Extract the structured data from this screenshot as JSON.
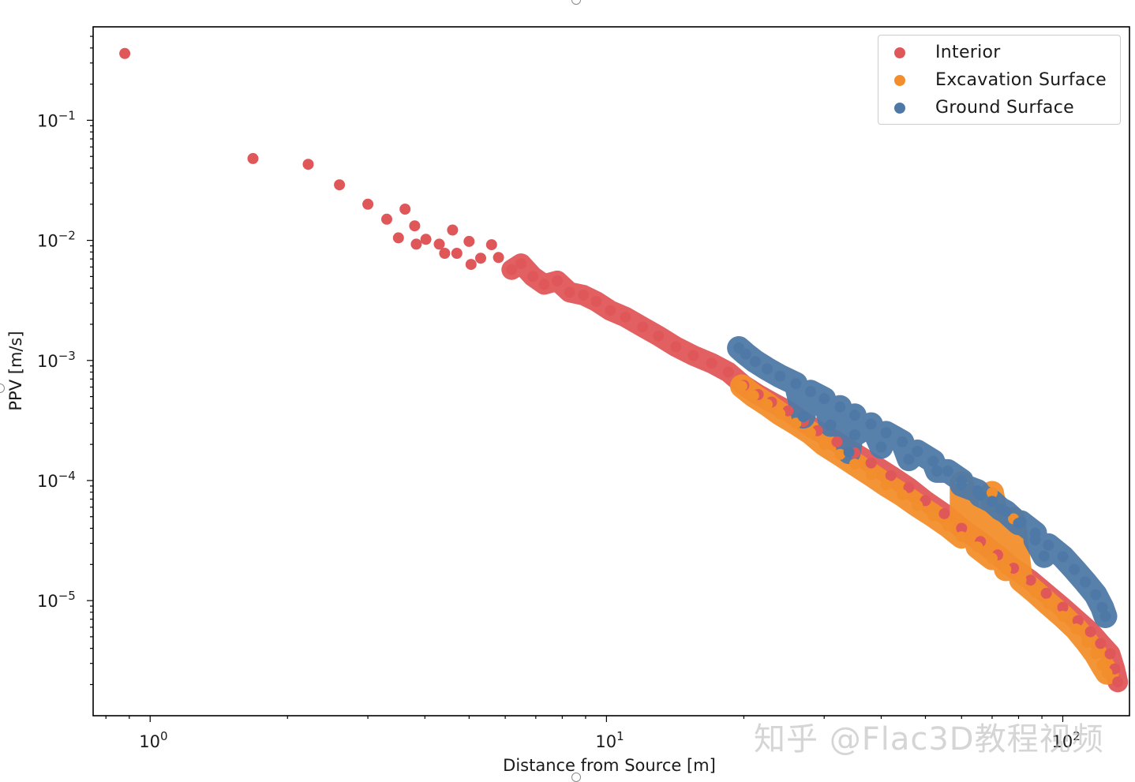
{
  "watermark": "知乎 @Flac3D教程视频",
  "colors": {
    "interior": "#e05759",
    "excavation": "#f28e2b",
    "ground": "#4e79a7"
  },
  "chart_data": {
    "type": "scatter",
    "title": "",
    "xlabel": "Distance from Source [m]",
    "ylabel": "PPV [m/s]",
    "xscale": "log",
    "yscale": "log",
    "xlim": [
      0.75,
      140
    ],
    "ylim": [
      1.1e-06,
      0.6
    ],
    "xticks": [
      {
        "value": 1,
        "base": "10",
        "exp": "0"
      },
      {
        "value": 10,
        "base": "10",
        "exp": "1"
      },
      {
        "value": 100,
        "base": "10",
        "exp": "2"
      }
    ],
    "yticks": [
      {
        "value": 0.1,
        "base": "10",
        "exp": "−1"
      },
      {
        "value": 0.01,
        "base": "10",
        "exp": "−2"
      },
      {
        "value": 0.001,
        "base": "10",
        "exp": "−3"
      },
      {
        "value": 0.0001,
        "base": "10",
        "exp": "−4"
      },
      {
        "value": 1e-05,
        "base": "10",
        "exp": "−5"
      }
    ],
    "legend_position": "top-right",
    "grid": false,
    "series": [
      {
        "name": "Interior",
        "color": "#e05759",
        "points": [
          [
            0.88,
            0.36
          ],
          [
            1.68,
            0.048
          ],
          [
            2.22,
            0.043
          ],
          [
            2.6,
            0.029
          ],
          [
            3.0,
            0.02
          ],
          [
            3.3,
            0.015
          ],
          [
            3.5,
            0.0105
          ],
          [
            3.62,
            0.0182
          ],
          [
            3.8,
            0.0132
          ],
          [
            3.83,
            0.0093
          ],
          [
            4.02,
            0.0102
          ],
          [
            4.3,
            0.0093
          ],
          [
            4.42,
            0.0078
          ],
          [
            4.6,
            0.0122
          ],
          [
            4.7,
            0.0078
          ],
          [
            5.0,
            0.0098
          ],
          [
            5.05,
            0.0063
          ],
          [
            5.3,
            0.0071
          ],
          [
            5.6,
            0.0092
          ],
          [
            5.8,
            0.0072
          ],
          [
            6.2,
            0.0057
          ],
          [
            6.5,
            0.0064
          ],
          [
            6.9,
            0.005
          ],
          [
            7.3,
            0.0043
          ],
          [
            7.8,
            0.0046
          ],
          [
            8.3,
            0.0037
          ],
          [
            8.9,
            0.0035
          ],
          [
            9.5,
            0.0031
          ],
          [
            10.2,
            0.0026
          ],
          [
            11.0,
            0.0023
          ],
          [
            12.0,
            0.0019
          ],
          [
            13.0,
            0.0016
          ],
          [
            14.2,
            0.0013
          ],
          [
            15.5,
            0.0011
          ],
          [
            17.0,
            0.00095
          ],
          [
            18.5,
            0.0008
          ],
          [
            20.0,
            0.00062
          ],
          [
            21.5,
            0.00052
          ],
          [
            23.0,
            0.00045
          ],
          [
            25.0,
            0.00038
          ],
          [
            27.0,
            0.00031
          ],
          [
            29.0,
            0.00026
          ],
          [
            32.0,
            0.00021
          ],
          [
            35.0,
            0.00017
          ],
          [
            38.0,
            0.00014
          ],
          [
            42.0,
            0.00011
          ],
          [
            46.0,
            8.75e-05
          ],
          [
            50.0,
            6.8e-05
          ],
          [
            55.0,
            5.3e-05
          ],
          [
            60.0,
            4e-05
          ],
          [
            66.0,
            3.1e-05
          ],
          [
            72.0,
            2.4e-05
          ],
          [
            78.0,
            1.86e-05
          ],
          [
            85.0,
            1.48e-05
          ],
          [
            92.0,
            1.15e-05
          ],
          [
            100.0,
            8.8e-06
          ],
          [
            108.0,
            6.8e-06
          ],
          [
            115.0,
            5.5e-06
          ],
          [
            121.0,
            4.4e-06
          ],
          [
            127.0,
            3.6e-06
          ],
          [
            130.0,
            2.7e-06
          ],
          [
            132.0,
            2.1e-06
          ]
        ]
      },
      {
        "name": "Excavation Surface",
        "color": "#f28e2b",
        "points": [
          [
            19.8,
            0.00061
          ],
          [
            21.0,
            0.00051
          ],
          [
            22.5,
            0.00043
          ],
          [
            24.0,
            0.00036
          ],
          [
            26.0,
            0.0003
          ],
          [
            28.0,
            0.00025
          ],
          [
            30.0,
            0.0002
          ],
          [
            32.5,
            0.000165
          ],
          [
            35.0,
            0.000137
          ],
          [
            38.0,
            0.000112
          ],
          [
            41.0,
            9.2e-05
          ],
          [
            44.5,
            7.6e-05
          ],
          [
            48.0,
            6.2e-05
          ],
          [
            52.0,
            5.1e-05
          ],
          [
            56.0,
            4.2e-05
          ],
          [
            60.0,
            3.4e-05
          ],
          [
            65.0,
            2.8e-05
          ],
          [
            70.0,
            2.25e-05
          ],
          [
            75.0,
            1.82e-05
          ],
          [
            81.0,
            1.48e-05
          ],
          [
            87.0,
            1.18e-05
          ],
          [
            93.0,
            9.4e-06
          ],
          [
            100.0,
            7.4e-06
          ],
          [
            107.0,
            5.8e-06
          ],
          [
            113.0,
            4.5e-06
          ],
          [
            118.0,
            3.6e-06
          ],
          [
            122.0,
            2.9e-06
          ],
          [
            125.0,
            2.5e-06
          ],
          [
            60.0,
            9.5e-05
          ],
          [
            70.0,
            7.9e-05
          ],
          [
            78.0,
            4.8e-05
          ]
        ]
      },
      {
        "name": "Ground Surface",
        "color": "#4e79a7",
        "points": [
          [
            19.5,
            0.00127
          ],
          [
            20.2,
            0.00113
          ],
          [
            21.2,
            0.00098
          ],
          [
            22.5,
            0.00085
          ],
          [
            24.0,
            0.00074
          ],
          [
            26.0,
            0.00064
          ],
          [
            28.0,
            0.00055
          ],
          [
            30.0,
            0.00048
          ],
          [
            32.5,
            0.00041
          ],
          [
            35.0,
            0.00035
          ],
          [
            38.0,
            0.000295
          ],
          [
            41.0,
            0.00025
          ],
          [
            44.5,
            0.00021
          ],
          [
            48.0,
            0.000175
          ],
          [
            52.0,
            0.000145
          ],
          [
            56.0,
            0.00012
          ],
          [
            60.0,
            0.0001
          ],
          [
            65.0,
            8.2e-05
          ],
          [
            70.0,
            6.7e-05
          ],
          [
            75.0,
            5.5e-05
          ],
          [
            81.0,
            4.5e-05
          ],
          [
            87.0,
            3.65e-05
          ],
          [
            93.0,
            2.9e-05
          ],
          [
            100.0,
            2.32e-05
          ],
          [
            106.0,
            1.82e-05
          ],
          [
            112.0,
            1.43e-05
          ],
          [
            118.0,
            1.12e-05
          ],
          [
            122.0,
            8.8e-06
          ],
          [
            124.0,
            7.4e-06
          ],
          [
            27.0,
            0.00034
          ],
          [
            31.0,
            0.00029
          ],
          [
            35.0,
            0.00024
          ],
          [
            40.0,
            0.00019
          ],
          [
            46.0,
            0.00015
          ],
          [
            53.0,
            0.00012
          ],
          [
            60.0,
            9.2e-05
          ],
          [
            66.0,
            7.5e-05
          ],
          [
            73.0,
            5.8e-05
          ],
          [
            80.0,
            4.4e-05
          ],
          [
            87.0,
            3.2e-05
          ],
          [
            91.0,
            2.35e-05
          ],
          [
            34.0,
            0.000172
          ]
        ]
      }
    ]
  }
}
